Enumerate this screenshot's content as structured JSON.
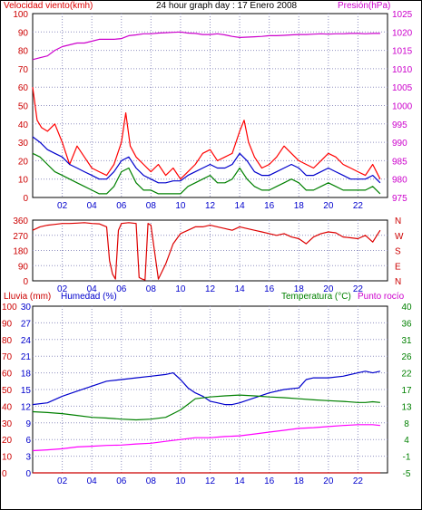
{
  "header": {
    "wind_label": "Velocidad viento(kmh)",
    "title": "24 hour graph day : 17 Enero 2008",
    "pressure_label": "Presión(hPa)"
  },
  "bottom_header": {
    "rain_label": "Lluvia (mm)",
    "humidity_label": "Humedad (%)",
    "temp_label": "Temperatura (°C)",
    "dew_label": "Punto rocío"
  },
  "colors": {
    "wind": "#dd0000",
    "gust": "#ff0000",
    "avg": "#0000cc",
    "low": "#008000",
    "pressure": "#cc00cc",
    "humidity": "#0000cc",
    "temperature": "#008000",
    "dew": "#ff00ff",
    "rain": "#cc0000",
    "grid": "#9090c0"
  },
  "chart_data": [
    {
      "type": "line",
      "title": "24 hour graph day : 17 Enero 2008",
      "x_ticks": [
        "02",
        "04",
        "06",
        "08",
        "10",
        "12",
        "14",
        "16",
        "18",
        "20",
        "22"
      ],
      "xlim": [
        0,
        24
      ],
      "y_left": {
        "label": "Velocidad viento(kmh)",
        "ticks": [
          0,
          10,
          20,
          30,
          40,
          50,
          60,
          70,
          80,
          90,
          100
        ],
        "lim": [
          0,
          100
        ]
      },
      "y_right": {
        "label": "Presión(hPa)",
        "ticks": [
          975,
          980,
          985,
          990,
          995,
          1000,
          1005,
          1010,
          1015,
          1020,
          1025
        ],
        "lim": [
          975,
          1025
        ]
      },
      "series": [
        {
          "axis": "left",
          "color": "#ff0000",
          "x": [
            0,
            0.3,
            0.6,
            1,
            1.5,
            2,
            2.5,
            3,
            3.5,
            4,
            4.5,
            5,
            5.5,
            6,
            6.3,
            6.6,
            7,
            7.5,
            8,
            8.5,
            9,
            9.5,
            10,
            10.5,
            11,
            11.5,
            12,
            12.5,
            13,
            13.5,
            14,
            14.3,
            14.6,
            15,
            15.5,
            16,
            16.5,
            17,
            17.5,
            18,
            18.5,
            19,
            19.5,
            20,
            20.5,
            21,
            21.5,
            22,
            22.5,
            23,
            23.5
          ],
          "values": [
            60,
            42,
            38,
            36,
            40,
            30,
            18,
            28,
            22,
            16,
            14,
            12,
            18,
            30,
            46,
            28,
            22,
            18,
            14,
            18,
            12,
            16,
            10,
            14,
            18,
            24,
            26,
            20,
            22,
            24,
            36,
            42,
            30,
            22,
            16,
            18,
            22,
            28,
            24,
            20,
            18,
            16,
            20,
            24,
            22,
            18,
            16,
            14,
            12,
            18,
            10
          ]
        },
        {
          "axis": "left",
          "color": "#0000cc",
          "x": [
            0,
            0.5,
            1,
            1.5,
            2,
            2.5,
            3,
            3.5,
            4,
            4.5,
            5,
            5.5,
            6,
            6.5,
            7,
            7.5,
            8,
            8.5,
            9,
            9.5,
            10,
            10.5,
            11,
            11.5,
            12,
            12.5,
            13,
            13.5,
            14,
            14.5,
            15,
            15.5,
            16,
            16.5,
            17,
            17.5,
            18,
            18.5,
            19,
            19.5,
            20,
            20.5,
            21,
            21.5,
            22,
            22.5,
            23,
            23.5
          ],
          "values": [
            33,
            30,
            26,
            24,
            22,
            18,
            16,
            14,
            12,
            10,
            10,
            14,
            20,
            22,
            16,
            12,
            10,
            8,
            8,
            9,
            9,
            12,
            14,
            16,
            18,
            16,
            16,
            18,
            24,
            20,
            14,
            12,
            12,
            14,
            16,
            18,
            16,
            12,
            12,
            14,
            16,
            14,
            12,
            10,
            10,
            10,
            12,
            8
          ]
        },
        {
          "axis": "left",
          "color": "#008000",
          "x": [
            0,
            0.5,
            1,
            1.5,
            2,
            2.5,
            3,
            3.5,
            4,
            4.5,
            5,
            5.5,
            6,
            6.5,
            7,
            7.5,
            8,
            8.5,
            9,
            9.5,
            10,
            10.5,
            11,
            11.5,
            12,
            12.5,
            13,
            13.5,
            14,
            14.5,
            15,
            15.5,
            16,
            16.5,
            17,
            17.5,
            18,
            18.5,
            19,
            19.5,
            20,
            20.5,
            21,
            21.5,
            22,
            22.5,
            23,
            23.5
          ],
          "values": [
            24,
            22,
            18,
            14,
            12,
            10,
            8,
            6,
            4,
            2,
            2,
            6,
            14,
            16,
            8,
            4,
            4,
            2,
            2,
            2,
            2,
            6,
            8,
            10,
            12,
            8,
            8,
            10,
            16,
            10,
            6,
            4,
            4,
            6,
            8,
            10,
            8,
            4,
            4,
            6,
            8,
            6,
            4,
            4,
            4,
            4,
            6,
            2
          ]
        },
        {
          "axis": "right",
          "color": "#cc00cc",
          "x": [
            0,
            0.5,
            1,
            1.5,
            2,
            2.5,
            3,
            3.5,
            4,
            4.5,
            5,
            5.5,
            6,
            6.5,
            7,
            7.5,
            8,
            8.5,
            9,
            9.5,
            10,
            10.5,
            11,
            11.5,
            12,
            12.5,
            13,
            13.5,
            14,
            14.5,
            15,
            15.5,
            16,
            16.5,
            17,
            17.5,
            18,
            18.5,
            19,
            19.5,
            20,
            20.5,
            21,
            21.5,
            22,
            22.5,
            23,
            23.5
          ],
          "values": [
            1012.5,
            1013,
            1013.5,
            1015,
            1016,
            1016.5,
            1017,
            1017,
            1017.5,
            1018,
            1018,
            1018,
            1018.2,
            1019,
            1019.2,
            1019.5,
            1019.5,
            1019.7,
            1019.8,
            1019.9,
            1020,
            1019.7,
            1019.6,
            1019.3,
            1019.3,
            1019.5,
            1019.2,
            1018.8,
            1018.5,
            1018.6,
            1018.7,
            1018.8,
            1019,
            1019,
            1019.1,
            1019.2,
            1019.3,
            1019.3,
            1019.4,
            1019.5,
            1019.4,
            1019.5,
            1019.5,
            1019.6,
            1019.6,
            1019.5,
            1019.6,
            1019.6
          ]
        }
      ]
    },
    {
      "type": "line",
      "x_ticks": [
        "02",
        "04",
        "06",
        "08",
        "10",
        "12",
        "14",
        "16",
        "18",
        "20",
        "22"
      ],
      "xlim": [
        0,
        24
      ],
      "y_left": {
        "ticks": [
          0,
          90,
          180,
          270,
          360
        ],
        "lim": [
          0,
          360
        ]
      },
      "y_right": {
        "ticks": [
          "N",
          "W",
          "S",
          "E",
          "N"
        ]
      },
      "series": [
        {
          "axis": "left",
          "color": "#dd0000",
          "x": [
            0,
            0.5,
            1,
            1.5,
            2,
            2.5,
            3,
            3.5,
            4,
            4.5,
            5,
            5.2,
            5.4,
            5.6,
            5.8,
            6,
            6.5,
            7,
            7.2,
            7.4,
            7.6,
            7.8,
            8,
            8.5,
            9,
            9.5,
            10,
            10.5,
            11,
            11.5,
            12,
            12.5,
            13,
            13.5,
            14,
            14.5,
            15,
            15.5,
            16,
            16.5,
            17,
            17.5,
            18,
            18.5,
            19,
            19.5,
            20,
            20.5,
            21,
            21.5,
            22,
            22.5,
            23,
            23.5
          ],
          "values": [
            300,
            320,
            330,
            335,
            340,
            340,
            342,
            345,
            340,
            338,
            320,
            120,
            40,
            10,
            300,
            340,
            345,
            340,
            20,
            10,
            5,
            340,
            330,
            10,
            100,
            220,
            280,
            300,
            320,
            320,
            330,
            320,
            310,
            300,
            320,
            310,
            300,
            290,
            280,
            270,
            280,
            260,
            250,
            220,
            260,
            280,
            290,
            285,
            260,
            255,
            250,
            270,
            230,
            300
          ]
        }
      ]
    },
    {
      "type": "line",
      "x_ticks": [
        "02",
        "04",
        "06",
        "08",
        "10",
        "12",
        "14",
        "16",
        "18",
        "20",
        "22"
      ],
      "xlim": [
        0,
        24
      ],
      "y_left_outer": {
        "label": "Lluvia (mm)",
        "ticks": [
          0,
          10,
          20,
          30,
          40,
          50,
          60,
          70,
          80,
          90,
          100
        ],
        "lim": [
          0,
          100
        ]
      },
      "y_left_inner": {
        "label": "Humedad (%)",
        "ticks": [
          0,
          3,
          6,
          9,
          12,
          15,
          18,
          21,
          24,
          27,
          30
        ],
        "lim": [
          0,
          30
        ]
      },
      "y_right": {
        "label": "Temperatura (°C)",
        "ticks": [
          -5,
          -1,
          4,
          8,
          13,
          17,
          22,
          26,
          31,
          36,
          40
        ],
        "lim": [
          -5,
          40
        ]
      },
      "series": [
        {
          "name": "Humedad (%)",
          "axis": "humidity",
          "color": "#0000cc",
          "x": [
            0,
            1,
            2,
            3,
            4,
            5,
            6,
            7,
            8,
            9,
            9.5,
            10,
            10.5,
            11,
            11.5,
            12,
            12.5,
            13,
            13.5,
            14,
            15,
            16,
            17,
            18,
            18.5,
            19,
            20,
            21,
            22,
            22.5,
            23,
            23.5
          ],
          "values": [
            41,
            42,
            46,
            49,
            52,
            55,
            56,
            57,
            58,
            59,
            60,
            56,
            51,
            48,
            46,
            43,
            42,
            41,
            41,
            42,
            45,
            48,
            50,
            51,
            56,
            57,
            57,
            58,
            60,
            61,
            60,
            61
          ]
        },
        {
          "name": "Temperatura (°C)",
          "axis": "right",
          "color": "#008000",
          "x": [
            0,
            1,
            2,
            3,
            4,
            5,
            6,
            7,
            8,
            9,
            9.5,
            10,
            10.5,
            11,
            12,
            13,
            14,
            15,
            16,
            17,
            18,
            19,
            20,
            21,
            22,
            22.5,
            23,
            23.5
          ],
          "values": [
            11.5,
            11.3,
            11,
            10.5,
            10,
            9.8,
            9.5,
            9.3,
            9.5,
            10,
            11,
            12,
            13.5,
            15,
            15.5,
            15.8,
            16,
            15.8,
            15.5,
            15.3,
            15,
            14.7,
            14.5,
            14.3,
            14,
            14,
            14.2,
            14
          ]
        },
        {
          "name": "Punto rocío",
          "axis": "right",
          "color": "#ff00ff",
          "x": [
            0,
            1,
            2,
            3,
            4,
            5,
            6,
            7,
            8,
            9,
            10,
            11,
            12,
            13,
            14,
            15,
            16,
            17,
            18,
            19,
            20,
            21,
            22,
            23,
            23.5
          ],
          "values": [
            1,
            1.2,
            1.5,
            2,
            2.2,
            2.4,
            2.5,
            2.8,
            3,
            3.5,
            4,
            4.5,
            4.5,
            4.8,
            5,
            5.5,
            6,
            6.5,
            7,
            7.2,
            7.5,
            7.8,
            8,
            8,
            7.8
          ]
        },
        {
          "name": "Lluvia (mm)",
          "axis": "rain",
          "color": "#cc0000",
          "x": [
            0,
            23.5
          ],
          "values": [
            0,
            0
          ]
        }
      ]
    }
  ]
}
